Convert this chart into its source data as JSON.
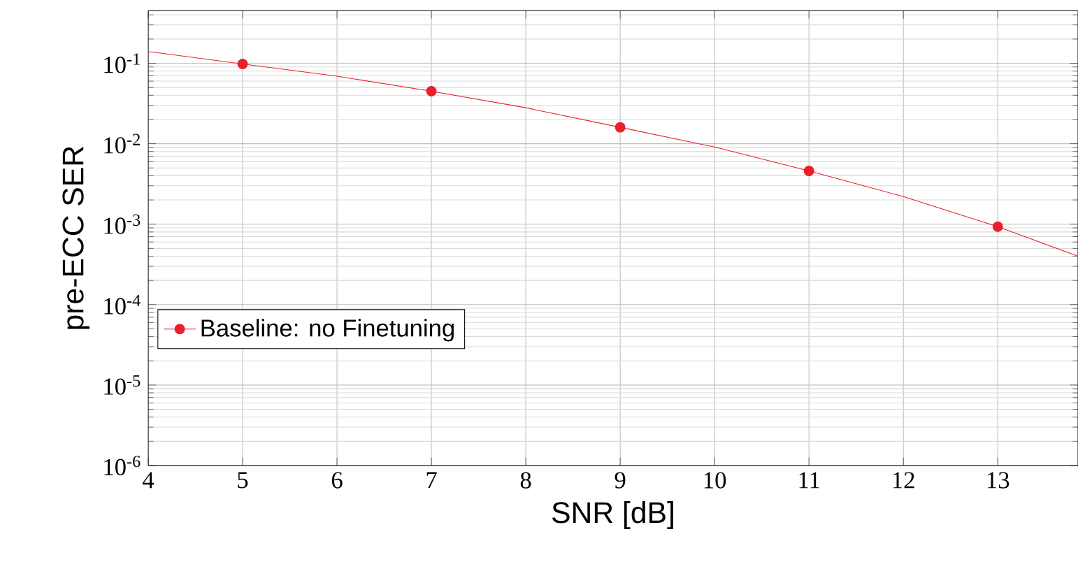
{
  "chart_data": {
    "type": "line",
    "xlabel": "SNR [dB]",
    "ylabel": "pre-ECC SER",
    "log": "y",
    "grid": true,
    "legend": "left",
    "xlim": [
      4,
      13.85
    ],
    "xticks": [
      4,
      5,
      6,
      7,
      8,
      9,
      10,
      11,
      12,
      13
    ],
    "ylim": [
      1e-06,
      0.45
    ],
    "yticks": [
      {
        "value": 1e-06,
        "label": "10$^{-6}$"
      },
      {
        "value": 1e-05,
        "label": "10$^{-5}$"
      },
      {
        "value": 0.0001,
        "label": "10$^{-4}$"
      },
      {
        "value": 0.001,
        "label": "10$^{-3}$"
      },
      {
        "value": 0.01,
        "label": "10$^{-2}$"
      },
      {
        "value": 0.1,
        "label": "10$^{-1}$"
      }
    ],
    "series": [
      {
        "name": "Baseline: no Finetuning",
        "color": "#e8202a",
        "marker": "none",
        "x": [
          4,
          5,
          6,
          7,
          8,
          9,
          10,
          11,
          12,
          13,
          13.85
        ],
        "values": [
          0.14,
          0.098,
          0.069,
          0.045,
          0.028,
          0.016,
          0.0091,
          0.0046,
          0.0022,
          0.00093,
          0.0004
        ]
      },
      {
        "type": "scatter",
        "color": "#e8202a",
        "marker": "circle",
        "x": [
          5,
          7,
          9,
          11,
          13
        ],
        "values": [
          0.098,
          0.045,
          0.016,
          0.0046,
          0.00093
        ]
      }
    ]
  }
}
